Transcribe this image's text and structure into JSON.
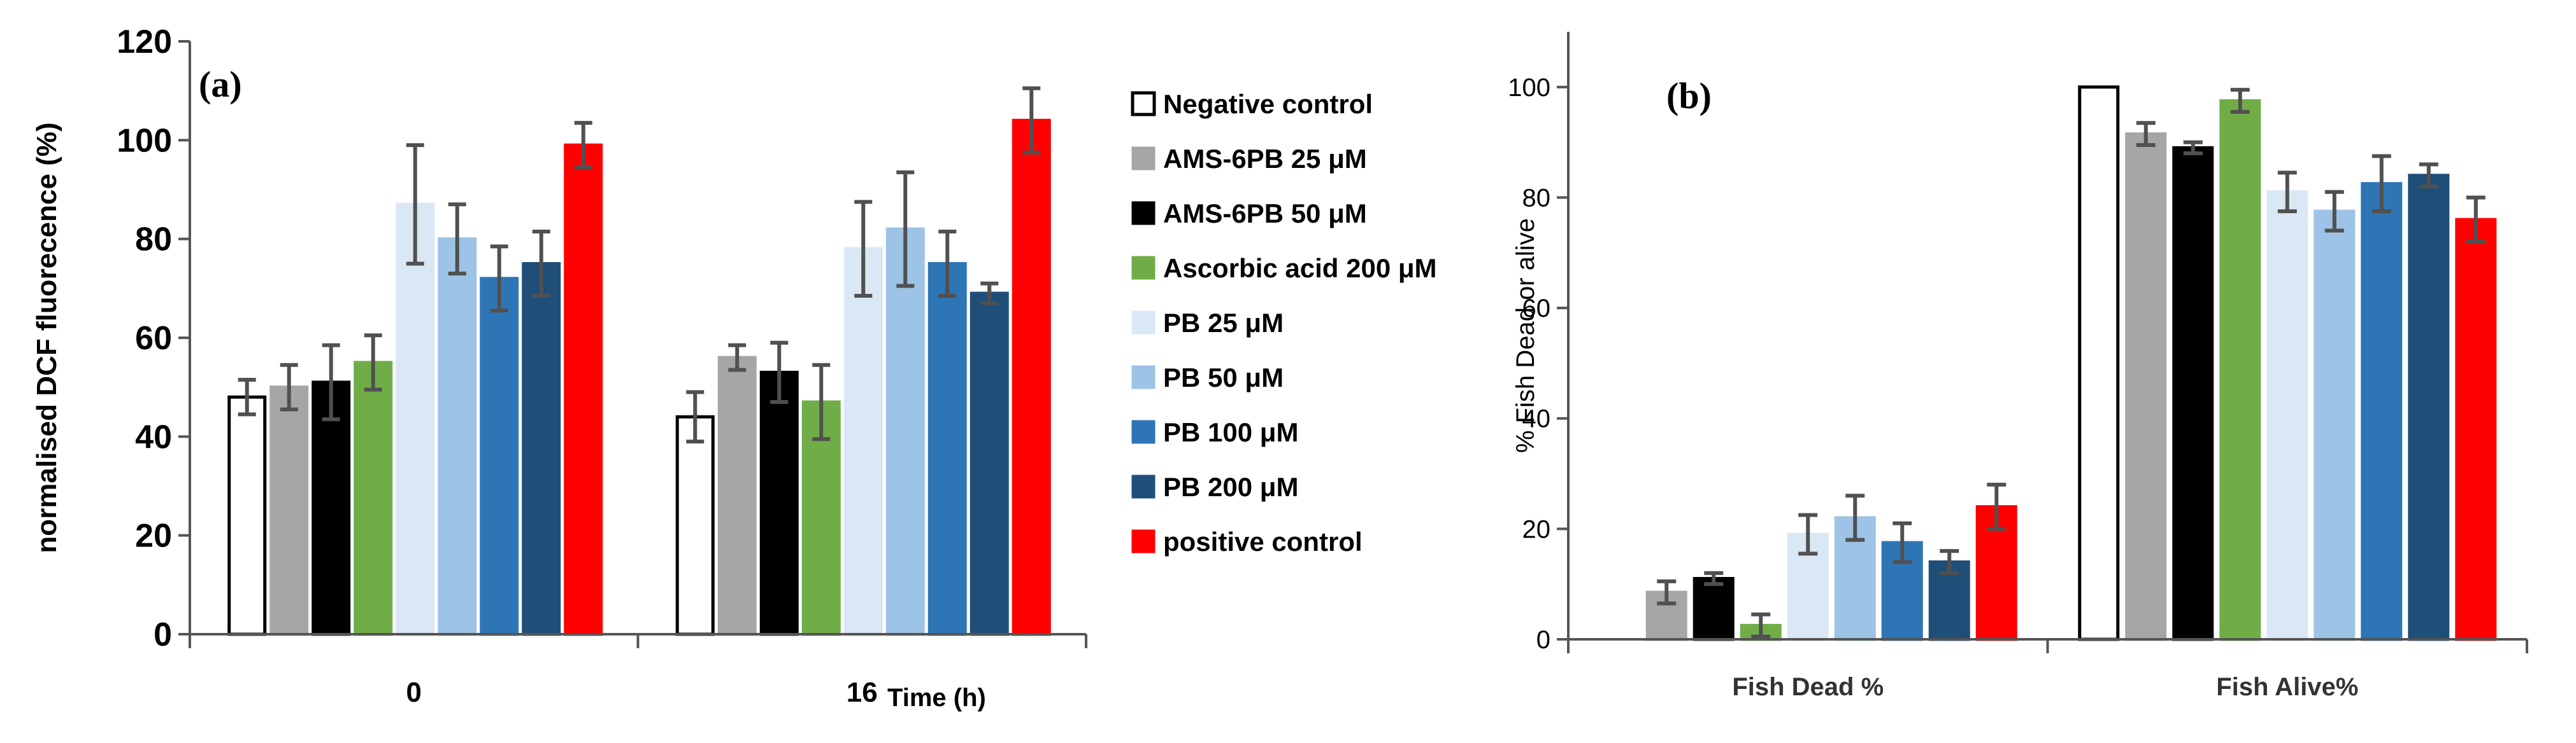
{
  "colors": [
    "#ffffff",
    "#a6a6a6",
    "#000000",
    "#70ad47",
    "#dae7f5",
    "#9dc3e6",
    "#2e75b6",
    "#1f4e79",
    "#ff0000"
  ],
  "edge_colors": [
    "#000000",
    "#a6a6a6",
    "#000000",
    "#70ad47",
    "#dae7f5",
    "#9dc3e6",
    "#2e75b6",
    "#1f4e79",
    "#ff0000"
  ],
  "legend": {
    "entries": [
      "Negative control",
      "AMS-6PB 25 μM",
      "AMS-6PB 50 μM",
      "Ascorbic acid 200 μM",
      "PB 25 μM",
      "PB 50 μM",
      "PB 100 μM",
      "PB 200 μM",
      "positive control"
    ]
  },
  "chart_data": [
    {
      "panel": "(a)",
      "type": "bar",
      "ylabel": "normalised DCF fluorecence (%)",
      "xlabel": "Time (h)",
      "ylim": [
        0,
        120
      ],
      "yticks": [
        0,
        20,
        40,
        60,
        80,
        100,
        120
      ],
      "categories": [
        "0",
        "16"
      ],
      "series": [
        {
          "name": "Negative control",
          "values": [
            48,
            44
          ],
          "errors": [
            3.5,
            5
          ]
        },
        {
          "name": "AMS-6PB 25 μM",
          "values": [
            50,
            56
          ],
          "errors": [
            4.5,
            2.5
          ]
        },
        {
          "name": "AMS-6PB 50 μM",
          "values": [
            51,
            53
          ],
          "errors": [
            7.5,
            6
          ]
        },
        {
          "name": "Ascorbic acid 200 μM",
          "values": [
            55,
            47
          ],
          "errors": [
            5.5,
            7.5
          ]
        },
        {
          "name": "PB 25 μM",
          "values": [
            87,
            78
          ],
          "errors": [
            12,
            9.5
          ]
        },
        {
          "name": "PB 50 μM",
          "values": [
            80,
            82
          ],
          "errors": [
            7,
            11.5
          ]
        },
        {
          "name": "PB 100 μM",
          "values": [
            72,
            75
          ],
          "errors": [
            6.5,
            6.5
          ]
        },
        {
          "name": "PB 200 μM",
          "values": [
            75,
            69
          ],
          "errors": [
            6.5,
            2
          ]
        },
        {
          "name": "positive control",
          "values": [
            99,
            104
          ],
          "errors": [
            4.5,
            6.5
          ]
        }
      ]
    },
    {
      "panel": "(b)",
      "type": "bar",
      "ylabel": "% Fish Dead or alive",
      "xlabel": "",
      "ylim": [
        0,
        110
      ],
      "yticks": [
        0,
        20,
        40,
        60,
        80,
        100
      ],
      "categories": [
        "Fish Dead %",
        "Fish Alive%"
      ],
      "series": [
        {
          "name": "Negative control",
          "values": [
            0,
            100
          ],
          "errors": [
            0,
            0
          ]
        },
        {
          "name": "AMS-6PB 25 μM",
          "values": [
            8.5,
            91.5
          ],
          "errors": [
            2,
            2
          ]
        },
        {
          "name": "AMS-6PB 50 μM",
          "values": [
            11,
            89
          ],
          "errors": [
            1,
            1
          ]
        },
        {
          "name": "Ascorbic acid 200 μM",
          "values": [
            2.5,
            97.5
          ],
          "errors": [
            2,
            2
          ]
        },
        {
          "name": "PB 25 μM",
          "values": [
            19,
            81
          ],
          "errors": [
            3.5,
            3.5
          ]
        },
        {
          "name": "PB 50 μM",
          "values": [
            22,
            77.5
          ],
          "errors": [
            4,
            3.5
          ]
        },
        {
          "name": "PB 100 μM",
          "values": [
            17.5,
            82.5
          ],
          "errors": [
            3.5,
            5
          ]
        },
        {
          "name": "PB 200 μM",
          "values": [
            14,
            84
          ],
          "errors": [
            2,
            2
          ]
        },
        {
          "name": "positive control",
          "values": [
            24,
            76
          ],
          "errors": [
            4,
            4
          ]
        }
      ]
    }
  ]
}
